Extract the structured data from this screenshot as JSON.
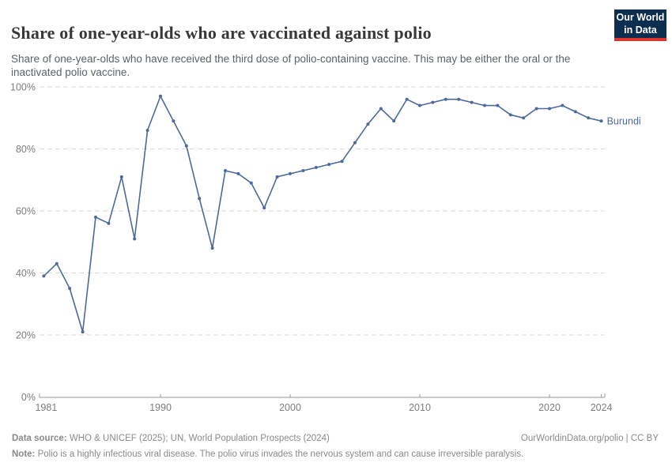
{
  "header": {
    "title": "Share of one-year-olds who are vaccinated against polio",
    "subtitle": "Share of one-year-olds who have received the third dose of polio-containing vaccine. This may be either the oral or the inactivated polio vaccine.",
    "logo": {
      "line1": "Our World",
      "line2": "in Data",
      "bg": "#0d2e4e",
      "accent": "#dc352c"
    }
  },
  "chart_data": {
    "type": "line",
    "title": "Share of one-year-olds who are vaccinated against polio",
    "xlabel": "",
    "ylabel": "",
    "xlim": [
      1981,
      2024
    ],
    "ylim": [
      0,
      100
    ],
    "grid": "horizontal-dashed",
    "x_ticks": [
      1981,
      1990,
      2000,
      2010,
      2020,
      2024
    ],
    "y_ticks": [
      {
        "value": 0,
        "label": "0%"
      },
      {
        "value": 20,
        "label": "20%"
      },
      {
        "value": 40,
        "label": "40%"
      },
      {
        "value": 60,
        "label": "60%"
      },
      {
        "value": 80,
        "label": "80%"
      },
      {
        "value": 100,
        "label": "100%"
      }
    ],
    "series": [
      {
        "name": "Burundi",
        "color": "#4c6a9c",
        "x": [
          1981,
          1982,
          1983,
          1984,
          1985,
          1986,
          1987,
          1988,
          1989,
          1990,
          1991,
          1992,
          1993,
          1994,
          1995,
          1996,
          1997,
          1998,
          1999,
          2000,
          2001,
          2002,
          2003,
          2004,
          2005,
          2006,
          2007,
          2008,
          2009,
          2010,
          2011,
          2012,
          2013,
          2014,
          2015,
          2016,
          2017,
          2018,
          2019,
          2020,
          2021,
          2022,
          2023,
          2024
        ],
        "values": [
          39,
          43,
          35,
          21,
          58,
          56,
          71,
          51,
          86,
          97,
          89,
          81,
          64,
          48,
          73,
          72,
          69,
          61,
          71,
          72,
          73,
          74,
          75,
          76,
          82,
          88,
          93,
          89,
          96,
          94,
          95,
          96,
          96,
          95,
          94,
          94,
          91,
          90,
          93,
          93,
          94,
          92,
          90,
          89
        ]
      }
    ],
    "legend_position": "end-of-line-label"
  },
  "footer": {
    "datasource_label": "Data source:",
    "datasource": " WHO & UNICEF (2025); UN, World Population Prospects (2024)",
    "rights": "OurWorldinData.org/polio | CC BY",
    "note_label": "Note:",
    "note": " Polio is a highly infectious viral disease. The polio virus invades the nervous system and can cause irreversible paralysis."
  },
  "colors": {
    "line": "#4c6a9c",
    "grid": "#dadada",
    "axis": "#999999",
    "tick_text": "#7d7d7d"
  }
}
